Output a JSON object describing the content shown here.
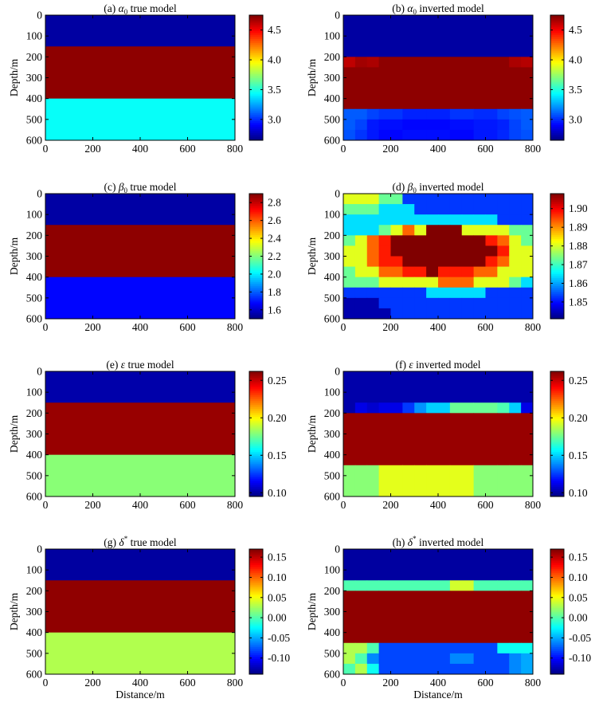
{
  "figure": {
    "xlabel": "Distance/m",
    "ylabel": "Depth/m"
  },
  "chart_data": [
    {
      "type": "heatmap",
      "panel_label": "(a)",
      "title_symbol": "α",
      "title_sub": "0",
      "title_sup": "",
      "title_rest": "true model",
      "xlim": [
        0,
        800
      ],
      "ylim": [
        0,
        600
      ],
      "xticks": [
        0,
        200,
        400,
        600,
        800
      ],
      "yticks": [
        0,
        100,
        200,
        300,
        400,
        500,
        600
      ],
      "clim": [
        2.65,
        4.75
      ],
      "cbar_ticks": [
        3.0,
        3.5,
        4.0,
        4.5
      ],
      "cbar_tick_labels": [
        "3.0",
        "3.5",
        "4.0",
        "4.5"
      ],
      "x_edges": [
        0,
        800
      ],
      "y_edges": [
        0,
        150,
        400,
        600
      ],
      "grid": [
        [
          2.72
        ],
        [
          4.72
        ],
        [
          3.45
        ]
      ]
    },
    {
      "type": "heatmap",
      "panel_label": "(b)",
      "title_symbol": "α",
      "title_sub": "0",
      "title_sup": "",
      "title_rest": "inverted  model",
      "xlim": [
        0,
        800
      ],
      "ylim": [
        0,
        600
      ],
      "xticks": [
        0,
        200,
        400,
        600,
        800
      ],
      "yticks": [
        0,
        100,
        200,
        300,
        400,
        500,
        600
      ],
      "clim": [
        2.65,
        4.75
      ],
      "cbar_ticks": [
        3.0,
        3.5,
        4.0,
        4.5
      ],
      "cbar_tick_labels": [
        "3.0",
        "3.5",
        "4.0",
        "4.5"
      ],
      "x_edges": [
        0,
        50,
        100,
        150,
        250,
        350,
        450,
        550,
        650,
        700,
        750,
        800
      ],
      "y_edges": [
        0,
        150,
        200,
        250,
        450,
        500,
        550,
        600
      ],
      "grid": [
        [
          2.72,
          2.72,
          2.72,
          2.72,
          2.72,
          2.72,
          2.72,
          2.72,
          2.72,
          2.72,
          2.72
        ],
        [
          2.72,
          2.72,
          2.72,
          2.72,
          2.72,
          2.72,
          2.72,
          2.72,
          2.72,
          2.72,
          2.72
        ],
        [
          4.62,
          4.68,
          4.66,
          4.72,
          4.72,
          4.72,
          4.72,
          4.72,
          4.72,
          4.66,
          4.64
        ],
        [
          4.72,
          4.72,
          4.72,
          4.72,
          4.72,
          4.72,
          4.72,
          4.72,
          4.72,
          4.72,
          4.72
        ],
        [
          3.1,
          3.1,
          3.05,
          3.02,
          2.98,
          2.98,
          3.02,
          3.0,
          3.05,
          3.08,
          3.1
        ],
        [
          3.1,
          3.05,
          2.96,
          2.94,
          2.92,
          2.92,
          2.94,
          2.96,
          2.98,
          3.05,
          3.1
        ],
        [
          3.08,
          3.02,
          2.96,
          2.92,
          2.94,
          2.94,
          2.92,
          2.96,
          2.99,
          3.05,
          3.08
        ]
      ]
    },
    {
      "type": "heatmap",
      "panel_label": "(c)",
      "title_symbol": "β",
      "title_sub": "0",
      "title_sup": "",
      "title_rest": "true model",
      "xlim": [
        0,
        800
      ],
      "ylim": [
        0,
        600
      ],
      "xticks": [
        0,
        200,
        400,
        600,
        800
      ],
      "yticks": [
        0,
        100,
        200,
        300,
        400,
        500,
        600
      ],
      "clim": [
        1.5,
        2.9
      ],
      "cbar_ticks": [
        1.6,
        1.8,
        2.0,
        2.2,
        2.4,
        2.6,
        2.8
      ],
      "cbar_tick_labels": [
        "1.6",
        "1.8",
        "2.0",
        "2.2",
        "2.4",
        "2.6",
        "2.8"
      ],
      "x_edges": [
        0,
        800
      ],
      "y_edges": [
        0,
        150,
        400,
        600
      ],
      "grid": [
        [
          1.55
        ],
        [
          2.88
        ],
        [
          1.68
        ]
      ]
    },
    {
      "type": "heatmap",
      "panel_label": "(d)",
      "title_symbol": "β",
      "title_sub": "0",
      "title_sup": "",
      "title_rest": "inverted model",
      "xlim": [
        0,
        800
      ],
      "ylim": [
        0,
        600
      ],
      "xticks": [
        0,
        200,
        400,
        600,
        800
      ],
      "yticks": [
        0,
        100,
        200,
        300,
        400,
        500,
        600
      ],
      "clim": [
        1.841,
        1.908
      ],
      "cbar_ticks": [
        1.85,
        1.86,
        1.87,
        1.88,
        1.89,
        1.9
      ],
      "cbar_tick_labels": [
        "1.85",
        "1.86",
        "1.87",
        "1.88",
        "1.89",
        "1.90"
      ],
      "x_edges": [
        0,
        50,
        100,
        150,
        200,
        250,
        300,
        350,
        400,
        450,
        500,
        550,
        600,
        650,
        700,
        750,
        800
      ],
      "y_edges": [
        0,
        50,
        100,
        150,
        200,
        250,
        300,
        350,
        400,
        450,
        500,
        550,
        600
      ],
      "grid": [
        [
          1.881,
          1.881,
          1.881,
          1.873,
          1.873,
          1.853,
          1.853,
          1.853,
          1.853,
          1.853,
          1.853,
          1.853,
          1.853,
          1.853,
          1.853,
          1.853
        ],
        [
          1.873,
          1.873,
          1.873,
          1.864,
          1.864,
          1.864,
          1.853,
          1.853,
          1.853,
          1.853,
          1.853,
          1.853,
          1.853,
          1.853,
          1.853,
          1.853
        ],
        [
          1.864,
          1.864,
          1.864,
          1.864,
          1.864,
          1.864,
          1.864,
          1.864,
          1.864,
          1.864,
          1.864,
          1.864,
          1.864,
          1.853,
          1.853,
          1.853
        ],
        [
          1.864,
          1.864,
          1.864,
          1.873,
          1.881,
          1.893,
          1.881,
          1.908,
          1.908,
          1.908,
          1.881,
          1.881,
          1.881,
          1.881,
          1.873,
          1.873
        ],
        [
          1.873,
          1.881,
          1.893,
          1.898,
          1.908,
          1.908,
          1.908,
          1.908,
          1.908,
          1.908,
          1.908,
          1.908,
          1.898,
          1.893,
          1.881,
          1.873
        ],
        [
          1.881,
          1.881,
          1.893,
          1.898,
          1.908,
          1.908,
          1.908,
          1.908,
          1.908,
          1.908,
          1.908,
          1.908,
          1.908,
          1.898,
          1.881,
          1.881
        ],
        [
          1.881,
          1.881,
          1.893,
          1.898,
          1.898,
          1.908,
          1.908,
          1.908,
          1.908,
          1.908,
          1.908,
          1.908,
          1.898,
          1.893,
          1.881,
          1.881
        ],
        [
          1.873,
          1.881,
          1.881,
          1.893,
          1.893,
          1.898,
          1.898,
          1.908,
          1.898,
          1.898,
          1.898,
          1.893,
          1.893,
          1.881,
          1.881,
          1.881
        ],
        [
          1.873,
          1.873,
          1.873,
          1.881,
          1.881,
          1.881,
          1.881,
          1.881,
          1.893,
          1.893,
          1.893,
          1.881,
          1.881,
          1.881,
          1.873,
          1.864
        ],
        [
          1.853,
          1.853,
          1.853,
          1.853,
          1.853,
          1.853,
          1.853,
          1.864,
          1.864,
          1.864,
          1.864,
          1.864,
          1.853,
          1.853,
          1.853,
          1.853
        ],
        [
          1.844,
          1.844,
          1.844,
          1.853,
          1.853,
          1.853,
          1.853,
          1.853,
          1.853,
          1.853,
          1.853,
          1.853,
          1.853,
          1.853,
          1.853,
          1.853
        ],
        [
          1.844,
          1.844,
          1.844,
          1.844,
          1.853,
          1.853,
          1.853,
          1.853,
          1.853,
          1.853,
          1.853,
          1.853,
          1.853,
          1.853,
          1.853,
          1.853
        ]
      ]
    },
    {
      "type": "heatmap",
      "panel_label": "(e)",
      "title_symbol": "ε",
      "title_sub": "",
      "title_sup": "",
      "title_rest": "true model",
      "xlim": [
        0,
        800
      ],
      "ylim": [
        0,
        600
      ],
      "xticks": [
        0,
        200,
        400,
        600,
        800
      ],
      "yticks": [
        0,
        100,
        200,
        300,
        400,
        500,
        600
      ],
      "clim": [
        0.095,
        0.262
      ],
      "cbar_ticks": [
        0.1,
        0.15,
        0.2,
        0.25
      ],
      "cbar_tick_labels": [
        "0.10",
        "0.15",
        "0.20",
        "0.25"
      ],
      "x_edges": [
        0,
        800
      ],
      "y_edges": [
        0,
        150,
        400,
        600
      ],
      "grid": [
        [
          0.102
        ],
        [
          0.258
        ],
        [
          0.18
        ]
      ]
    },
    {
      "type": "heatmap",
      "panel_label": "(f)",
      "title_symbol": "ε",
      "title_sub": "",
      "title_sup": "",
      "title_rest": "inverted model",
      "xlim": [
        0,
        800
      ],
      "ylim": [
        0,
        600
      ],
      "xticks": [
        0,
        200,
        400,
        600,
        800
      ],
      "yticks": [
        0,
        100,
        200,
        300,
        400,
        500,
        600
      ],
      "clim": [
        0.095,
        0.262
      ],
      "cbar_ticks": [
        0.1,
        0.15,
        0.2,
        0.25
      ],
      "cbar_tick_labels": [
        "0.10",
        "0.15",
        "0.20",
        "0.25"
      ],
      "x_edges": [
        0,
        50,
        100,
        150,
        250,
        300,
        350,
        450,
        550,
        650,
        700,
        750,
        800
      ],
      "y_edges": [
        0,
        150,
        200,
        450,
        600
      ],
      "grid": [
        [
          0.102,
          0.102,
          0.102,
          0.102,
          0.102,
          0.102,
          0.102,
          0.102,
          0.102,
          0.102,
          0.102,
          0.102
        ],
        [
          0.102,
          0.112,
          0.108,
          0.112,
          0.125,
          0.14,
          0.15,
          0.175,
          0.175,
          0.17,
          0.15,
          0.112
        ],
        [
          0.258,
          0.258,
          0.258,
          0.258,
          0.258,
          0.258,
          0.258,
          0.258,
          0.258,
          0.258,
          0.258,
          0.258
        ],
        [
          0.18,
          0.18,
          0.18,
          0.195,
          0.195,
          0.195,
          0.195,
          0.195,
          0.18,
          0.18,
          0.18,
          0.18
        ]
      ]
    },
    {
      "type": "heatmap",
      "panel_label": "(g)",
      "title_symbol": "δ",
      "title_sub": "",
      "title_sup": "*",
      "title_rest": "true model",
      "xlim": [
        0,
        800
      ],
      "ylim": [
        0,
        600
      ],
      "xticks": [
        0,
        200,
        400,
        600,
        800
      ],
      "yticks": [
        0,
        100,
        200,
        300,
        400,
        500,
        600
      ],
      "clim": [
        -0.14,
        0.17
      ],
      "cbar_ticks": [
        -0.1,
        -0.05,
        0.0,
        0.05,
        0.1,
        0.15
      ],
      "cbar_tick_labels": [
        "-0.10",
        "-0.05",
        "0.00",
        "0.05",
        "0.10",
        "0.15"
      ],
      "x_edges": [
        0,
        800
      ],
      "y_edges": [
        0,
        150,
        400,
        600
      ],
      "grid": [
        [
          -0.13
        ],
        [
          0.165
        ],
        [
          0.03
        ]
      ]
    },
    {
      "type": "heatmap",
      "panel_label": "(h)",
      "title_symbol": "δ",
      "title_sub": "",
      "title_sup": "*",
      "title_rest": "inverted model",
      "xlim": [
        0,
        800
      ],
      "ylim": [
        0,
        600
      ],
      "xticks": [
        0,
        200,
        400,
        600,
        800
      ],
      "yticks": [
        0,
        100,
        200,
        300,
        400,
        500,
        600
      ],
      "clim": [
        -0.14,
        0.17
      ],
      "cbar_ticks": [
        -0.1,
        -0.05,
        0.0,
        0.05,
        0.1,
        0.15
      ],
      "cbar_tick_labels": [
        "-0.10",
        "-0.05",
        "0.00",
        "0.05",
        "0.10",
        "0.15"
      ],
      "x_edges": [
        0,
        50,
        100,
        150,
        450,
        550,
        650,
        700,
        750,
        800
      ],
      "y_edges": [
        0,
        150,
        200,
        450,
        500,
        550,
        600
      ],
      "grid": [
        [
          -0.13,
          -0.13,
          -0.13,
          -0.13,
          -0.13,
          -0.13,
          -0.13,
          -0.13,
          -0.13
        ],
        [
          0.0,
          0.0,
          0.0,
          0.0,
          0.04,
          0.0,
          0.0,
          0.0,
          0.0
        ],
        [
          0.165,
          0.165,
          0.165,
          0.165,
          0.165,
          0.165,
          0.165,
          0.165,
          0.165
        ],
        [
          0.03,
          0.03,
          0.0,
          -0.08,
          -0.08,
          -0.08,
          -0.02,
          -0.02,
          -0.02
        ],
        [
          0.03,
          0.0,
          -0.06,
          -0.08,
          -0.06,
          -0.08,
          -0.08,
          -0.06,
          -0.05
        ],
        [
          0.0,
          0.03,
          -0.02,
          -0.08,
          -0.08,
          -0.08,
          -0.08,
          -0.06,
          -0.05
        ]
      ]
    }
  ]
}
